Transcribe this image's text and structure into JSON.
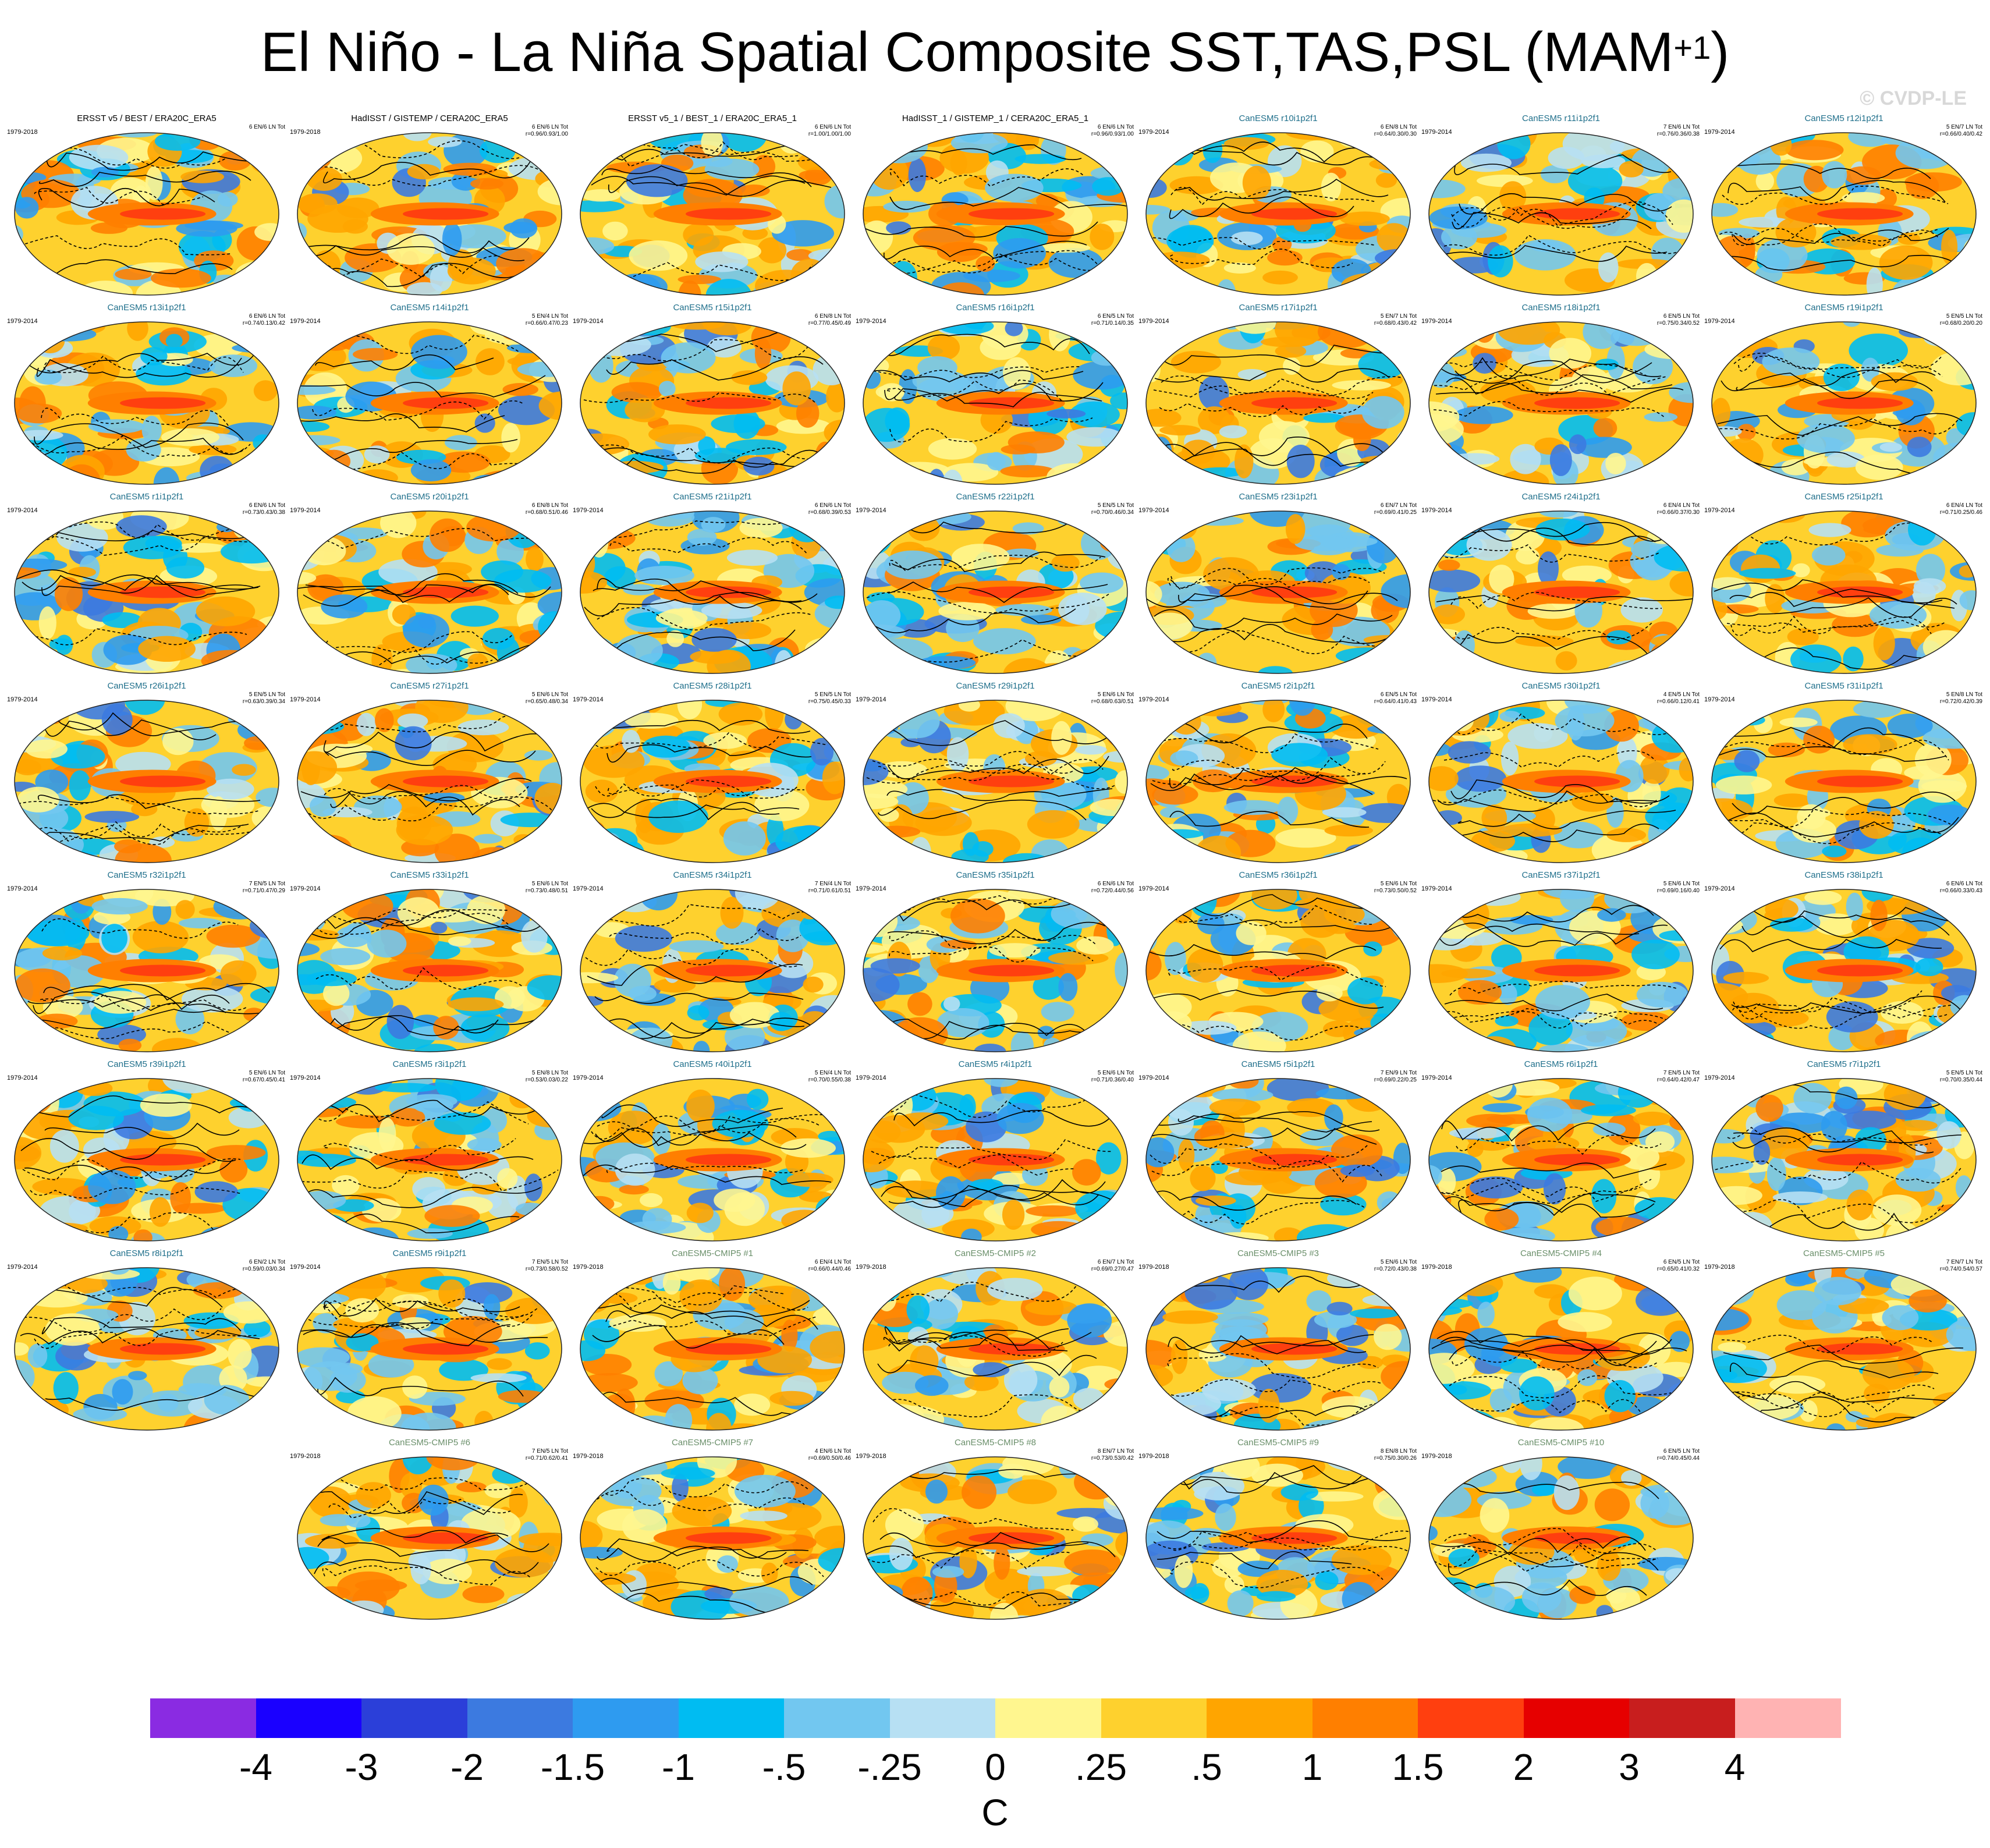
{
  "header": {
    "title": "El Niño - La Niña Spatial Composite SST,TAS,PSL (MAM",
    "title_sup": "+1",
    "title_end": ")",
    "watermark": "© CVDP-LE"
  },
  "colors": {
    "palette": [
      "#8a2be2",
      "#1a00ff",
      "#2b3fd9",
      "#3c7ae0",
      "#2e9bf0",
      "#00bcf2",
      "#72c7f0",
      "#b7e0f3",
      "#fff68f",
      "#fed12e",
      "#ffa500",
      "#ff7f00",
      "#ff3f0f",
      "#e60000",
      "#c81e1e",
      "#ffb3b3"
    ],
    "obs_title": "#000000",
    "model_title": "#1f6f8b",
    "cmip_title": "#6a8f6a"
  },
  "chart_data": {
    "type": "heatmap",
    "description_units": "C",
    "colorbar": {
      "tick_labels": [
        "-4",
        "-3",
        "-2",
        "-1.5",
        "-1",
        "-.5",
        "-.25",
        "0",
        ".25",
        ".5",
        "1",
        "1.5",
        "2",
        "3",
        "4"
      ],
      "unit": "C"
    },
    "panels": [
      {
        "title": "ERSST v5 / BEST / ERA20C_ERA5",
        "years": "1979-2018",
        "stats1": "6 EN/6 LN Tot",
        "stats2": "",
        "kind": "obs"
      },
      {
        "title": "HadISST / GISTEMP / CERA20C_ERA5",
        "years": "1979-2018",
        "stats1": "6 EN/6 LN Tot",
        "stats2": "r=0.96/0.93/1.00",
        "kind": "obs"
      },
      {
        "title": "ERSST v5_1 / BEST_1 / ERA20C_ERA5_1",
        "years": "",
        "stats1": "6 EN/6 LN Tot",
        "stats2": "r=1.00/1.00/1.00",
        "kind": "obs"
      },
      {
        "title": "HadISST_1 / GISTEMP_1 / CERA20C_ERA5_1",
        "years": "",
        "stats1": "6 EN/6 LN Tot",
        "stats2": "r=0.96/0.93/1.00",
        "kind": "obs"
      },
      {
        "title": "CanESM5 r10i1p2f1",
        "years": "1979-2014",
        "stats1": "6 EN/8 LN Tot",
        "stats2": "r=0.64/0.30/0.30",
        "kind": "mod"
      },
      {
        "title": "CanESM5 r11i1p2f1",
        "years": "1979-2014",
        "stats1": "7 EN/6 LN Tot",
        "stats2": "r=0.76/0.36/0.38",
        "kind": "mod"
      },
      {
        "title": "CanESM5 r12i1p2f1",
        "years": "1979-2014",
        "stats1": "5 EN/7 LN Tot",
        "stats2": "r=0.66/0.40/0.42",
        "kind": "mod"
      },
      {
        "title": "CanESM5 r13i1p2f1",
        "years": "1979-2014",
        "stats1": "6 EN/6 LN Tot",
        "stats2": "r=0.74/0.13/0.42",
        "kind": "mod"
      },
      {
        "title": "CanESM5 r14i1p2f1",
        "years": "1979-2014",
        "stats1": "5 EN/4 LN Tot",
        "stats2": "r=0.66/0.47/0.23",
        "kind": "mod"
      },
      {
        "title": "CanESM5 r15i1p2f1",
        "years": "1979-2014",
        "stats1": "6 EN/8 LN Tot",
        "stats2": "r=0.77/0.45/0.49",
        "kind": "mod"
      },
      {
        "title": "CanESM5 r16i1p2f1",
        "years": "1979-2014",
        "stats1": "6 EN/5 LN Tot",
        "stats2": "r=0.71/0.14/0.35",
        "kind": "mod"
      },
      {
        "title": "CanESM5 r17i1p2f1",
        "years": "1979-2014",
        "stats1": "5 EN/7 LN Tot",
        "stats2": "r=0.68/0.43/0.42",
        "kind": "mod"
      },
      {
        "title": "CanESM5 r18i1p2f1",
        "years": "1979-2014",
        "stats1": "6 EN/5 LN Tot",
        "stats2": "r=0.75/0.34/0.52",
        "kind": "mod"
      },
      {
        "title": "CanESM5 r19i1p2f1",
        "years": "1979-2014",
        "stats1": "5 EN/5 LN Tot",
        "stats2": "r=0.68/0.20/0.20",
        "kind": "mod"
      },
      {
        "title": "CanESM5 r1i1p2f1",
        "years": "1979-2014",
        "stats1": "6 EN/6 LN Tot",
        "stats2": "r=0.73/0.43/0.38",
        "kind": "mod"
      },
      {
        "title": "CanESM5 r20i1p2f1",
        "years": "1979-2014",
        "stats1": "6 EN/8 LN Tot",
        "stats2": "r=0.68/0.51/0.46",
        "kind": "mod"
      },
      {
        "title": "CanESM5 r21i1p2f1",
        "years": "1979-2014",
        "stats1": "6 EN/6 LN Tot",
        "stats2": "r=0.68/0.39/0.53",
        "kind": "mod"
      },
      {
        "title": "CanESM5 r22i1p2f1",
        "years": "1979-2014",
        "stats1": "5 EN/5 LN Tot",
        "stats2": "r=0.70/0.46/0.34",
        "kind": "mod"
      },
      {
        "title": "CanESM5 r23i1p2f1",
        "years": "1979-2014",
        "stats1": "6 EN/7 LN Tot",
        "stats2": "r=0.69/0.41/0.25",
        "kind": "mod"
      },
      {
        "title": "CanESM5 r24i1p2f1",
        "years": "1979-2014",
        "stats1": "6 EN/4 LN Tot",
        "stats2": "r=0.66/0.37/0.30",
        "kind": "mod"
      },
      {
        "title": "CanESM5 r25i1p2f1",
        "years": "1979-2014",
        "stats1": "6 EN/4 LN Tot",
        "stats2": "r=0.71/0.25/0.46",
        "kind": "mod"
      },
      {
        "title": "CanESM5 r26i1p2f1",
        "years": "1979-2014",
        "stats1": "5 EN/5 LN Tot",
        "stats2": "r=0.63/0.39/0.34",
        "kind": "mod"
      },
      {
        "title": "CanESM5 r27i1p2f1",
        "years": "1979-2014",
        "stats1": "5 EN/6 LN Tot",
        "stats2": "r=0.65/0.48/0.34",
        "kind": "mod"
      },
      {
        "title": "CanESM5 r28i1p2f1",
        "years": "1979-2014",
        "stats1": "5 EN/5 LN Tot",
        "stats2": "r=0.75/0.45/0.33",
        "kind": "mod"
      },
      {
        "title": "CanESM5 r29i1p2f1",
        "years": "1979-2014",
        "stats1": "5 EN/6 LN Tot",
        "stats2": "r=0.68/0.63/0.51",
        "kind": "mod"
      },
      {
        "title": "CanESM5 r2i1p2f1",
        "years": "1979-2014",
        "stats1": "6 EN/5 LN Tot",
        "stats2": "r=0.64/0.41/0.43",
        "kind": "mod"
      },
      {
        "title": "CanESM5 r30i1p2f1",
        "years": "1979-2014",
        "stats1": "4 EN/5 LN Tot",
        "stats2": "r=0.66/0.12/0.41",
        "kind": "mod"
      },
      {
        "title": "CanESM5 r31i1p2f1",
        "years": "1979-2014",
        "stats1": "5 EN/8 LN Tot",
        "stats2": "r=0.72/0.42/0.39",
        "kind": "mod"
      },
      {
        "title": "CanESM5 r32i1p2f1",
        "years": "1979-2014",
        "stats1": "7 EN/5 LN Tot",
        "stats2": "r=0.71/0.47/0.29",
        "kind": "mod"
      },
      {
        "title": "CanESM5 r33i1p2f1",
        "years": "1979-2014",
        "stats1": "5 EN/6 LN Tot",
        "stats2": "r=0.73/0.48/0.51",
        "kind": "mod"
      },
      {
        "title": "CanESM5 r34i1p2f1",
        "years": "1979-2014",
        "stats1": "7 EN/4 LN Tot",
        "stats2": "r=0.71/0.61/0.51",
        "kind": "mod"
      },
      {
        "title": "CanESM5 r35i1p2f1",
        "years": "1979-2014",
        "stats1": "6 EN/6 LN Tot",
        "stats2": "r=0.72/0.44/0.56",
        "kind": "mod"
      },
      {
        "title": "CanESM5 r36i1p2f1",
        "years": "1979-2014",
        "stats1": "5 EN/6 LN Tot",
        "stats2": "r=0.73/0.50/0.52",
        "kind": "mod"
      },
      {
        "title": "CanESM5 r37i1p2f1",
        "years": "1979-2014",
        "stats1": "5 EN/6 LN Tot",
        "stats2": "r=0.69/0.16/0.40",
        "kind": "mod"
      },
      {
        "title": "CanESM5 r38i1p2f1",
        "years": "1979-2014",
        "stats1": "6 EN/6 LN Tot",
        "stats2": "r=0.66/0.33/0.43",
        "kind": "mod"
      },
      {
        "title": "CanESM5 r39i1p2f1",
        "years": "1979-2014",
        "stats1": "5 EN/6 LN Tot",
        "stats2": "r=0.67/0.45/0.41",
        "kind": "mod"
      },
      {
        "title": "CanESM5 r3i1p2f1",
        "years": "1979-2014",
        "stats1": "5 EN/8 LN Tot",
        "stats2": "r=0.53/0.03/0.22",
        "kind": "mod"
      },
      {
        "title": "CanESM5 r40i1p2f1",
        "years": "1979-2014",
        "stats1": "5 EN/4 LN Tot",
        "stats2": "r=0.70/0.55/0.38",
        "kind": "mod"
      },
      {
        "title": "CanESM5 r4i1p2f1",
        "years": "1979-2014",
        "stats1": "5 EN/6 LN Tot",
        "stats2": "r=0.71/0.36/0.40",
        "kind": "mod"
      },
      {
        "title": "CanESM5 r5i1p2f1",
        "years": "1979-2014",
        "stats1": "7 EN/9 LN Tot",
        "stats2": "r=0.69/0.22/0.25",
        "kind": "mod"
      },
      {
        "title": "CanESM5 r6i1p2f1",
        "years": "1979-2014",
        "stats1": "7 EN/5 LN Tot",
        "stats2": "r=0.64/0.42/0.47",
        "kind": "mod"
      },
      {
        "title": "CanESM5 r7i1p2f1",
        "years": "1979-2014",
        "stats1": "5 EN/5 LN Tot",
        "stats2": "r=0.70/0.35/0.44",
        "kind": "mod"
      },
      {
        "title": "CanESM5 r8i1p2f1",
        "years": "1979-2014",
        "stats1": "6 EN/2 LN Tot",
        "stats2": "r=0.59/0.03/0.34",
        "kind": "mod"
      },
      {
        "title": "CanESM5 r9i1p2f1",
        "years": "1979-2014",
        "stats1": "7 EN/5 LN Tot",
        "stats2": "r=0.73/0.58/0.52",
        "kind": "mod"
      },
      {
        "title": "CanESM5-CMIP5 #1",
        "years": "1979-2018",
        "stats1": "6 EN/4 LN Tot",
        "stats2": "r=0.66/0.44/0.46",
        "kind": "cmip"
      },
      {
        "title": "CanESM5-CMIP5 #2",
        "years": "1979-2018",
        "stats1": "6 EN/7 LN Tot",
        "stats2": "r=0.69/0.27/0.47",
        "kind": "cmip"
      },
      {
        "title": "CanESM5-CMIP5 #3",
        "years": "1979-2018",
        "stats1": "5 EN/6 LN Tot",
        "stats2": "r=0.72/0.43/0.38",
        "kind": "cmip"
      },
      {
        "title": "CanESM5-CMIP5 #4",
        "years": "1979-2018",
        "stats1": "6 EN/5 LN Tot",
        "stats2": "r=0.65/0.41/0.32",
        "kind": "cmip"
      },
      {
        "title": "CanESM5-CMIP5 #5",
        "years": "1979-2018",
        "stats1": "7 EN/7 LN Tot",
        "stats2": "r=0.74/0.54/0.57",
        "kind": "cmip"
      },
      {
        "title": "CanESM5-CMIP5 #6",
        "years": "1979-2018",
        "stats1": "7 EN/5 LN Tot",
        "stats2": "r=0.71/0.62/0.41",
        "kind": "cmip"
      },
      {
        "title": "CanESM5-CMIP5 #7",
        "years": "1979-2018",
        "stats1": "4 EN/6 LN Tot",
        "stats2": "r=0.69/0.50/0.46",
        "kind": "cmip"
      },
      {
        "title": "CanESM5-CMIP5 #8",
        "years": "1979-2018",
        "stats1": "8 EN/7 LN Tot",
        "stats2": "r=0.73/0.53/0.42",
        "kind": "cmip"
      },
      {
        "title": "CanESM5-CMIP5 #9",
        "years": "1979-2018",
        "stats1": "8 EN/8 LN Tot",
        "stats2": "r=0.75/0.30/0.26",
        "kind": "cmip"
      },
      {
        "title": "CanESM5-CMIP5 #10",
        "years": "1979-2018",
        "stats1": "6 EN/5 LN Tot",
        "stats2": "r=0.74/0.45/0.44",
        "kind": "cmip"
      }
    ]
  }
}
